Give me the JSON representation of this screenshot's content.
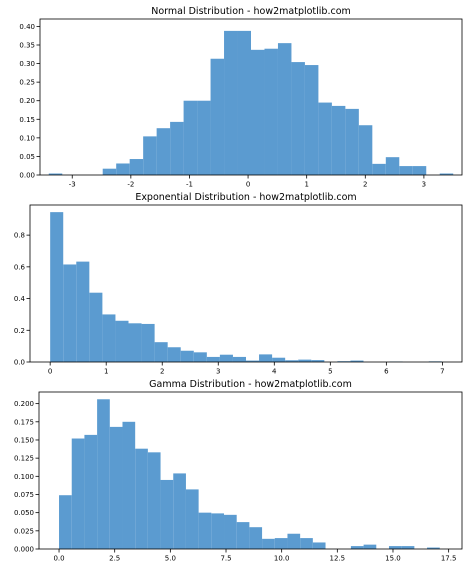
{
  "chart_data": [
    {
      "type": "bar",
      "title": "Normal Distribution - how2matplotlib.com",
      "xlabel": "",
      "ylabel": "",
      "xlim": [
        -3.55,
        3.65
      ],
      "ylim": [
        0,
        0.42
      ],
      "xticks": [
        -3,
        -2,
        -1,
        0,
        1,
        2,
        3
      ],
      "xtick_labels": [
        "-3",
        "-2",
        "-1",
        "0",
        "1",
        "2",
        "3"
      ],
      "yticks": [
        0,
        0.05,
        0.1,
        0.15,
        0.2,
        0.25,
        0.3,
        0.35,
        0.4
      ],
      "ytick_labels": [
        "0.00",
        "0.05",
        "0.10",
        "0.15",
        "0.20",
        "0.25",
        "0.30",
        "0.35",
        "0.40"
      ],
      "bin_start": -3.4,
      "bin_width": 0.23,
      "values": [
        0.004,
        0.0,
        0.0,
        0.0,
        0.017,
        0.031,
        0.043,
        0.104,
        0.126,
        0.143,
        0.2,
        0.2,
        0.313,
        0.388,
        0.388,
        0.337,
        0.34,
        0.355,
        0.304,
        0.296,
        0.195,
        0.186,
        0.178,
        0.134,
        0.03,
        0.048,
        0.024,
        0.024,
        0.0,
        0.004
      ],
      "color": "#5b9bd0"
    },
    {
      "type": "bar",
      "title": "Exponential Distribution - how2matplotlib.com",
      "xlabel": "",
      "ylabel": "",
      "xlim": [
        -0.36,
        7.35
      ],
      "ylim": [
        0,
        0.99
      ],
      "xticks": [
        0,
        1,
        2,
        3,
        4,
        5,
        6,
        7
      ],
      "xtick_labels": [
        "0",
        "1",
        "2",
        "3",
        "4",
        "5",
        "6",
        "7"
      ],
      "yticks": [
        0,
        0.2,
        0.4,
        0.6,
        0.8
      ],
      "ytick_labels": [
        "0.0",
        "0.2",
        "0.4",
        "0.6",
        "0.8"
      ],
      "bin_start": 0.0,
      "bin_width": 0.233,
      "values": [
        0.945,
        0.615,
        0.633,
        0.437,
        0.3,
        0.26,
        0.244,
        0.24,
        0.125,
        0.093,
        0.071,
        0.061,
        0.032,
        0.046,
        0.032,
        0.009,
        0.048,
        0.027,
        0.011,
        0.015,
        0.012,
        0.0,
        0.005,
        0.009,
        0.0,
        0.0,
        0.003,
        0.0,
        0.0,
        0.004
      ],
      "color": "#5b9bd0"
    },
    {
      "type": "bar",
      "title": "Gamma Distribution - how2matplotlib.com",
      "xlabel": "",
      "ylabel": "",
      "xlim": [
        -0.9,
        18.1
      ],
      "ylim": [
        0,
        0.216
      ],
      "xticks": [
        0,
        2.5,
        5,
        7.5,
        10,
        12.5,
        15,
        17.5
      ],
      "xtick_labels": [
        "0.0",
        "2.5",
        "5.0",
        "7.5",
        "10.0",
        "12.5",
        "15.0",
        "17.5"
      ],
      "yticks": [
        0,
        0.025,
        0.05,
        0.075,
        0.1,
        0.125,
        0.15,
        0.175,
        0.2
      ],
      "ytick_labels": [
        "0.000",
        "0.025",
        "0.050",
        "0.075",
        "0.100",
        "0.125",
        "0.150",
        "0.175",
        "0.200"
      ],
      "bin_start": 0.0,
      "bin_width": 0.57,
      "values": [
        0.074,
        0.152,
        0.157,
        0.206,
        0.168,
        0.175,
        0.138,
        0.133,
        0.095,
        0.104,
        0.082,
        0.05,
        0.049,
        0.047,
        0.037,
        0.03,
        0.014,
        0.015,
        0.021,
        0.015,
        0.009,
        0.0,
        0.0,
        0.004,
        0.006,
        0.0,
        0.004,
        0.004,
        0.0,
        0.002
      ],
      "color": "#5b9bd0"
    }
  ]
}
